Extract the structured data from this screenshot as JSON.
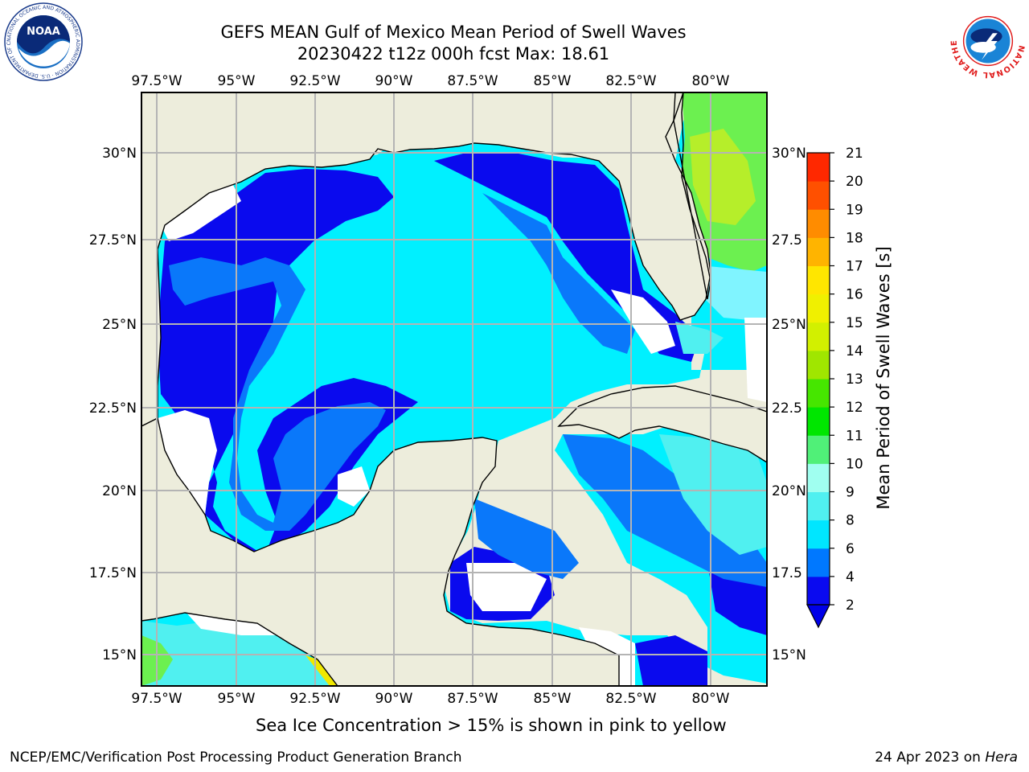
{
  "header": {
    "title": "GEFS MEAN Gulf of Mexico Mean Period of Swell Waves",
    "subtitle": "20230422 t12z 000h fcst   Max: 18.61"
  },
  "logos": {
    "left": "NOAA",
    "left_ring": "NATIONAL OCEANIC AND ATMOSPHERIC ADMINISTRATION · U.S. DEPARTMENT OF COMMERCE",
    "right_ring": "NATIONAL WEATHER SERVICE"
  },
  "map": {
    "lon_labels": [
      "97.5°W",
      "95°W",
      "92.5°W",
      "90°W",
      "87.5°W",
      "85°W",
      "82.5°W",
      "80°W"
    ],
    "lat_labels_left": [
      "30°N",
      "27.5°N",
      "25°N",
      "22.5°N",
      "20°N",
      "17.5°N",
      "15°N"
    ],
    "lat_labels_right": [
      "30°N",
      "27.5",
      "25°N",
      "22.5",
      "20°N",
      "17.5",
      "15°N"
    ],
    "lon_range": [
      -98,
      -79.0
    ],
    "lat_range": [
      14.0,
      31.8
    ],
    "colors": {
      "land": "#ededdc",
      "grid": "#b4b4b4",
      "coast": "#000000"
    }
  },
  "colorbar": {
    "label": "Mean Period of Swell Waves [s]",
    "ticks": [
      "2",
      "4",
      "6",
      "8",
      "9",
      "10",
      "11",
      "12",
      "13",
      "14",
      "15",
      "16",
      "17",
      "18",
      "19",
      "20",
      "21"
    ],
    "colors": [
      "#0a0af0",
      "#0078ff",
      "#00e6ff",
      "#50f0f0",
      "#a0fff0",
      "#50f078",
      "#00e600",
      "#46e600",
      "#a0e600",
      "#d2f000",
      "#f0f000",
      "#ffe600",
      "#ffb400",
      "#ff8c00",
      "#ff5000",
      "#ff2800",
      "#ff0000"
    ],
    "extend": "min"
  },
  "footnote": "Sea Ice Concentration > 15% is shown in pink to yellow",
  "credit_left": "NCEP/EMC/Verification Post Processing Product Generation Branch",
  "credit_right_date": "24 Apr 2023 on ",
  "credit_right_host": "Hera"
}
